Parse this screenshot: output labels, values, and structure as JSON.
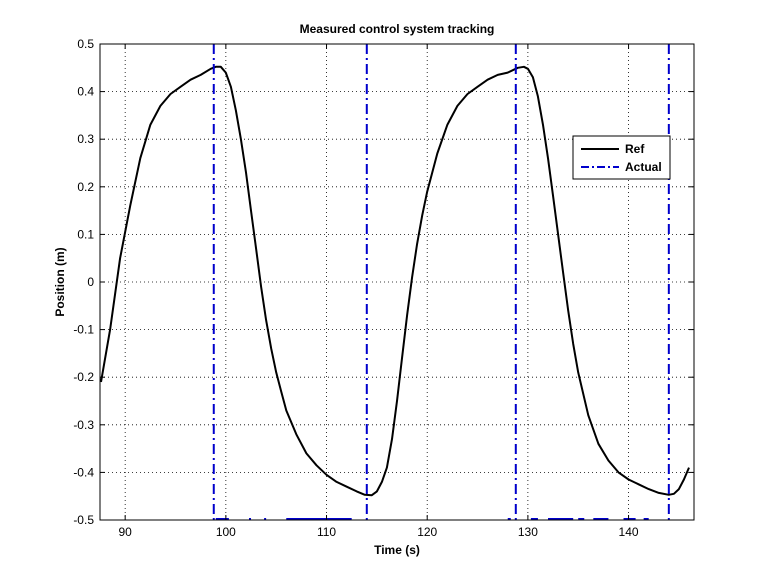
{
  "chart_data": {
    "type": "line",
    "title": "Measured control system tracking",
    "xlabel": "Time (s)",
    "ylabel": "Position (m)",
    "xlim": [
      87.5,
      146.5
    ],
    "ylim": [
      -0.5,
      0.5
    ],
    "xticks": [
      90,
      100,
      110,
      120,
      130,
      140
    ],
    "yticks": [
      -0.5,
      -0.4,
      -0.3,
      -0.2,
      -0.1,
      0,
      0.1,
      0.2,
      0.3,
      0.4,
      0.5
    ],
    "xtick_labels": [
      "90",
      "100",
      "110",
      "120",
      "130",
      "140"
    ],
    "ytick_labels": [
      "-0.5",
      "-0.4",
      "-0.3",
      "-0.2",
      "-0.1",
      "0",
      "0.1",
      "0.2",
      "0.3",
      "0.4",
      "0.5"
    ],
    "grid": true,
    "legend_position": "upper-right",
    "series": [
      {
        "name": "Ref",
        "color": "#000000",
        "style": "solid",
        "x": [
          87.6,
          88.5,
          89.5,
          90.5,
          91.5,
          92.5,
          93.5,
          94.5,
          95.5,
          96.5,
          97.5,
          98.5,
          99.0,
          99.5,
          100.0,
          100.5,
          101.0,
          101.5,
          102.0,
          102.5,
          103.0,
          103.5,
          104.0,
          104.5,
          105.0,
          105.5,
          106.0,
          107.0,
          108.0,
          109.0,
          110.0,
          111.0,
          112.0,
          113.0,
          113.8,
          114.5,
          115.0,
          115.5,
          116.0,
          116.5,
          117.0,
          117.5,
          118.0,
          118.5,
          119.0,
          119.5,
          120.0,
          121.0,
          122.0,
          123.0,
          124.0,
          125.0,
          126.0,
          127.0,
          128.0,
          129.0,
          129.6,
          130.0,
          130.5,
          131.0,
          131.5,
          132.0,
          132.5,
          133.0,
          133.5,
          134.0,
          134.5,
          135.0,
          136.0,
          137.0,
          138.0,
          139.0,
          140.0,
          141.0,
          142.0,
          143.0,
          144.0,
          144.5,
          145.0,
          145.5,
          146.0
        ],
        "y": [
          -0.21,
          -0.1,
          0.05,
          0.16,
          0.26,
          0.33,
          0.37,
          0.395,
          0.41,
          0.425,
          0.435,
          0.448,
          0.452,
          0.452,
          0.44,
          0.41,
          0.36,
          0.3,
          0.23,
          0.15,
          0.07,
          -0.01,
          -0.08,
          -0.14,
          -0.19,
          -0.23,
          -0.27,
          -0.32,
          -0.36,
          -0.385,
          -0.405,
          -0.42,
          -0.43,
          -0.44,
          -0.447,
          -0.448,
          -0.44,
          -0.42,
          -0.39,
          -0.33,
          -0.25,
          -0.16,
          -0.07,
          0.01,
          0.08,
          0.14,
          0.19,
          0.27,
          0.33,
          0.37,
          0.395,
          0.41,
          0.425,
          0.435,
          0.44,
          0.45,
          0.452,
          0.448,
          0.43,
          0.39,
          0.33,
          0.26,
          0.18,
          0.1,
          0.02,
          -0.06,
          -0.13,
          -0.19,
          -0.28,
          -0.34,
          -0.375,
          -0.4,
          -0.415,
          -0.425,
          -0.435,
          -0.443,
          -0.447,
          -0.445,
          -0.435,
          -0.415,
          -0.39
        ]
      },
      {
        "name": "Actual",
        "color": "#0000cc",
        "style": "dash-dot",
        "vertical_lines": [
          98.8,
          114.0,
          128.8,
          144.0
        ],
        "baseline_segments": [
          [
            99.0,
            100.3
          ],
          [
            102.3,
            102.5
          ],
          [
            103.8,
            104.0
          ],
          [
            106.0,
            112.5
          ],
          [
            128.0,
            128.3
          ],
          [
            130.3,
            131.0
          ],
          [
            132.0,
            134.5
          ],
          [
            135.0,
            135.6
          ],
          [
            136.5,
            138.0
          ],
          [
            139.5,
            140.7
          ],
          [
            141.5,
            142.0
          ]
        ]
      }
    ]
  }
}
